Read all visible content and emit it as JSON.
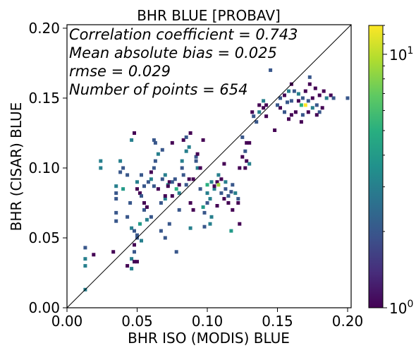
{
  "chart_data": {
    "type": "heatmap",
    "title": "BHR BLUE [PROBAV]",
    "xlabel": "BHR ISO (MODIS) BLUE",
    "ylabel": "BHR (CISAR) BLUE",
    "xlim": [
      0.0,
      0.2025
    ],
    "ylim": [
      0.0,
      0.2025
    ],
    "x_ticks": [
      "0.00",
      "0.05",
      "0.10",
      "0.15",
      "0.20"
    ],
    "y_ticks": [
      "0.00",
      "0.05",
      "0.10",
      "0.15",
      "0.20"
    ],
    "x_tick_values": [
      0.0,
      0.05,
      0.1,
      0.15,
      0.2
    ],
    "y_tick_values": [
      0.0,
      0.05,
      0.1,
      0.15,
      0.2
    ],
    "reference_line": "1:1",
    "annotations": [
      "Correlation coefficient = 0.743",
      "Mean absolute bias = 0.025",
      "rmse = 0.029",
      "Number of points = 654"
    ],
    "colorbar": {
      "scale": "log",
      "range": [
        1,
        13
      ],
      "colormap": "viridis",
      "tick_labels": [
        {
          "base": "10",
          "exp": "0",
          "value": 1
        },
        {
          "base": "10",
          "exp": "1",
          "value": 10
        }
      ]
    },
    "bin_size": 0.0025,
    "cells": [
      [
        0.013,
        0.013,
        3
      ],
      [
        0.013,
        0.03,
        3
      ],
      [
        0.013,
        0.035,
        3
      ],
      [
        0.013,
        0.043,
        2
      ],
      [
        0.019,
        0.038,
        1
      ],
      [
        0.024,
        0.1,
        3
      ],
      [
        0.024,
        0.105,
        3
      ],
      [
        0.033,
        0.04,
        1
      ],
      [
        0.035,
        0.078,
        2
      ],
      [
        0.035,
        0.082,
        2
      ],
      [
        0.035,
        0.087,
        3
      ],
      [
        0.035,
        0.068,
        2
      ],
      [
        0.035,
        0.062,
        2
      ],
      [
        0.038,
        0.097,
        2
      ],
      [
        0.038,
        0.105,
        3
      ],
      [
        0.04,
        0.1,
        2
      ],
      [
        0.04,
        0.085,
        4
      ],
      [
        0.043,
        0.095,
        2
      ],
      [
        0.043,
        0.065,
        2
      ],
      [
        0.045,
        0.075,
        2
      ],
      [
        0.046,
        0.12,
        3
      ],
      [
        0.046,
        0.057,
        3
      ],
      [
        0.048,
        0.055,
        2
      ],
      [
        0.048,
        0.045,
        1
      ],
      [
        0.05,
        0.05,
        2
      ],
      [
        0.05,
        0.052,
        2
      ],
      [
        0.052,
        0.06,
        4
      ],
      [
        0.053,
        0.048,
        3
      ],
      [
        0.048,
        0.04,
        2
      ],
      [
        0.046,
        0.035,
        3
      ],
      [
        0.043,
        0.03,
        1
      ],
      [
        0.046,
        0.028,
        3
      ],
      [
        0.048,
        0.033,
        1
      ],
      [
        0.05,
        0.033,
        1
      ],
      [
        0.048,
        0.125,
        1
      ],
      [
        0.05,
        0.09,
        3
      ],
      [
        0.053,
        0.095,
        2
      ],
      [
        0.05,
        0.085,
        1
      ],
      [
        0.052,
        0.082,
        1
      ],
      [
        0.053,
        0.08,
        2
      ],
      [
        0.055,
        0.087,
        2
      ],
      [
        0.055,
        0.075,
        1
      ],
      [
        0.055,
        0.07,
        2
      ],
      [
        0.057,
        0.072,
        1
      ],
      [
        0.057,
        0.063,
        3
      ],
      [
        0.06,
        0.065,
        2
      ],
      [
        0.058,
        0.09,
        2
      ],
      [
        0.06,
        0.092,
        3
      ],
      [
        0.06,
        0.097,
        1
      ],
      [
        0.062,
        0.087,
        2
      ],
      [
        0.062,
        0.1,
        2
      ],
      [
        0.063,
        0.105,
        2
      ],
      [
        0.063,
        0.118,
        2
      ],
      [
        0.062,
        0.12,
        2
      ],
      [
        0.065,
        0.085,
        1
      ],
      [
        0.065,
        0.11,
        3
      ],
      [
        0.067,
        0.075,
        2
      ],
      [
        0.067,
        0.055,
        2
      ],
      [
        0.068,
        0.113,
        2
      ],
      [
        0.068,
        0.092,
        2
      ],
      [
        0.07,
        0.078,
        3
      ],
      [
        0.07,
        0.08,
        1
      ],
      [
        0.07,
        0.095,
        3
      ],
      [
        0.07,
        0.05,
        2
      ],
      [
        0.072,
        0.088,
        4
      ],
      [
        0.072,
        0.087,
        1
      ],
      [
        0.073,
        0.06,
        2
      ],
      [
        0.073,
        0.09,
        1
      ],
      [
        0.075,
        0.08,
        1
      ],
      [
        0.075,
        0.09,
        2
      ],
      [
        0.075,
        0.118,
        1
      ],
      [
        0.077,
        0.092,
        2
      ],
      [
        0.078,
        0.085,
        5
      ],
      [
        0.078,
        0.04,
        2
      ],
      [
        0.08,
        0.088,
        1
      ],
      [
        0.08,
        0.082,
        3
      ],
      [
        0.08,
        0.07,
        2
      ],
      [
        0.082,
        0.1,
        2
      ],
      [
        0.082,
        0.105,
        3
      ],
      [
        0.083,
        0.095,
        2
      ],
      [
        0.083,
        0.12,
        1
      ],
      [
        0.085,
        0.112,
        3
      ],
      [
        0.085,
        0.088,
        2
      ],
      [
        0.085,
        0.122,
        2
      ],
      [
        0.087,
        0.115,
        3
      ],
      [
        0.087,
        0.092,
        1
      ],
      [
        0.088,
        0.057,
        3
      ],
      [
        0.088,
        0.075,
        1
      ],
      [
        0.088,
        0.125,
        1
      ],
      [
        0.09,
        0.092,
        1
      ],
      [
        0.09,
        0.07,
        1
      ],
      [
        0.092,
        0.108,
        2
      ],
      [
        0.092,
        0.105,
        2
      ],
      [
        0.093,
        0.11,
        1
      ],
      [
        0.093,
        0.1,
        3
      ],
      [
        0.095,
        0.1,
        1
      ],
      [
        0.095,
        0.085,
        2
      ],
      [
        0.097,
        0.12,
        1
      ],
      [
        0.097,
        0.072,
        4
      ],
      [
        0.098,
        0.068,
        2
      ],
      [
        0.098,
        0.058,
        2
      ],
      [
        0.1,
        0.075,
        2
      ],
      [
        0.1,
        0.088,
        5
      ],
      [
        0.1,
        0.082,
        3
      ],
      [
        0.102,
        0.078,
        3
      ],
      [
        0.102,
        0.06,
        3
      ],
      [
        0.103,
        0.09,
        3
      ],
      [
        0.103,
        0.065,
        3
      ],
      [
        0.105,
        0.085,
        3
      ],
      [
        0.105,
        0.087,
        1
      ],
      [
        0.107,
        0.09,
        1
      ],
      [
        0.107,
        0.073,
        1
      ],
      [
        0.108,
        0.088,
        9
      ],
      [
        0.108,
        0.095,
        3
      ],
      [
        0.11,
        0.092,
        1
      ],
      [
        0.11,
        0.082,
        2
      ],
      [
        0.112,
        0.078,
        1
      ],
      [
        0.112,
        0.103,
        1
      ],
      [
        0.113,
        0.09,
        3
      ],
      [
        0.113,
        0.085,
        2
      ],
      [
        0.115,
        0.08,
        2
      ],
      [
        0.115,
        0.075,
        1
      ],
      [
        0.117,
        0.083,
        2
      ],
      [
        0.117,
        0.055,
        4
      ],
      [
        0.118,
        0.088,
        2
      ],
      [
        0.118,
        0.07,
        1
      ],
      [
        0.12,
        0.082,
        3
      ],
      [
        0.122,
        0.078,
        2
      ],
      [
        0.122,
        0.075,
        1
      ],
      [
        0.123,
        0.1,
        1
      ],
      [
        0.123,
        0.06,
        1
      ],
      [
        0.125,
        0.122,
        2
      ],
      [
        0.125,
        0.108,
        1
      ],
      [
        0.127,
        0.112,
        2
      ],
      [
        0.127,
        0.1,
        1
      ],
      [
        0.128,
        0.118,
        1
      ],
      [
        0.128,
        0.105,
        1
      ],
      [
        0.13,
        0.103,
        3
      ],
      [
        0.13,
        0.118,
        1
      ],
      [
        0.132,
        0.14,
        1
      ],
      [
        0.133,
        0.137,
        2
      ],
      [
        0.135,
        0.133,
        2
      ],
      [
        0.137,
        0.14,
        3
      ],
      [
        0.137,
        0.145,
        1
      ],
      [
        0.14,
        0.143,
        1
      ],
      [
        0.14,
        0.148,
        3
      ],
      [
        0.142,
        0.145,
        1
      ],
      [
        0.142,
        0.137,
        1
      ],
      [
        0.145,
        0.17,
        2
      ],
      [
        0.148,
        0.127,
        1
      ],
      [
        0.152,
        0.15,
        2
      ],
      [
        0.155,
        0.152,
        1
      ],
      [
        0.157,
        0.147,
        2
      ],
      [
        0.158,
        0.155,
        3
      ],
      [
        0.16,
        0.148,
        2
      ],
      [
        0.16,
        0.138,
        1
      ],
      [
        0.162,
        0.155,
        2
      ],
      [
        0.163,
        0.14,
        1
      ],
      [
        0.165,
        0.153,
        3
      ],
      [
        0.165,
        0.148,
        1
      ],
      [
        0.167,
        0.145,
        5
      ],
      [
        0.167,
        0.133,
        1
      ],
      [
        0.168,
        0.15,
        2
      ],
      [
        0.17,
        0.145,
        13
      ],
      [
        0.17,
        0.155,
        1
      ],
      [
        0.172,
        0.14,
        1
      ],
      [
        0.172,
        0.148,
        2
      ],
      [
        0.173,
        0.165,
        2
      ],
      [
        0.175,
        0.143,
        3
      ],
      [
        0.175,
        0.15,
        1
      ],
      [
        0.177,
        0.157,
        1
      ],
      [
        0.178,
        0.145,
        2
      ],
      [
        0.18,
        0.14,
        2
      ],
      [
        0.18,
        0.152,
        1
      ],
      [
        0.182,
        0.143,
        1
      ],
      [
        0.185,
        0.15,
        3
      ],
      [
        0.188,
        0.152,
        1
      ],
      [
        0.19,
        0.15,
        2
      ],
      [
        0.2,
        0.15,
        2
      ],
      [
        0.152,
        0.143,
        1
      ],
      [
        0.155,
        0.14,
        2
      ],
      [
        0.158,
        0.135,
        1
      ],
      [
        0.168,
        0.138,
        2
      ],
      [
        0.178,
        0.138,
        1
      ],
      [
        0.183,
        0.155,
        1
      ],
      [
        0.173,
        0.16,
        1
      ],
      [
        0.16,
        0.16,
        1
      ],
      [
        0.15,
        0.145,
        2
      ]
    ]
  }
}
